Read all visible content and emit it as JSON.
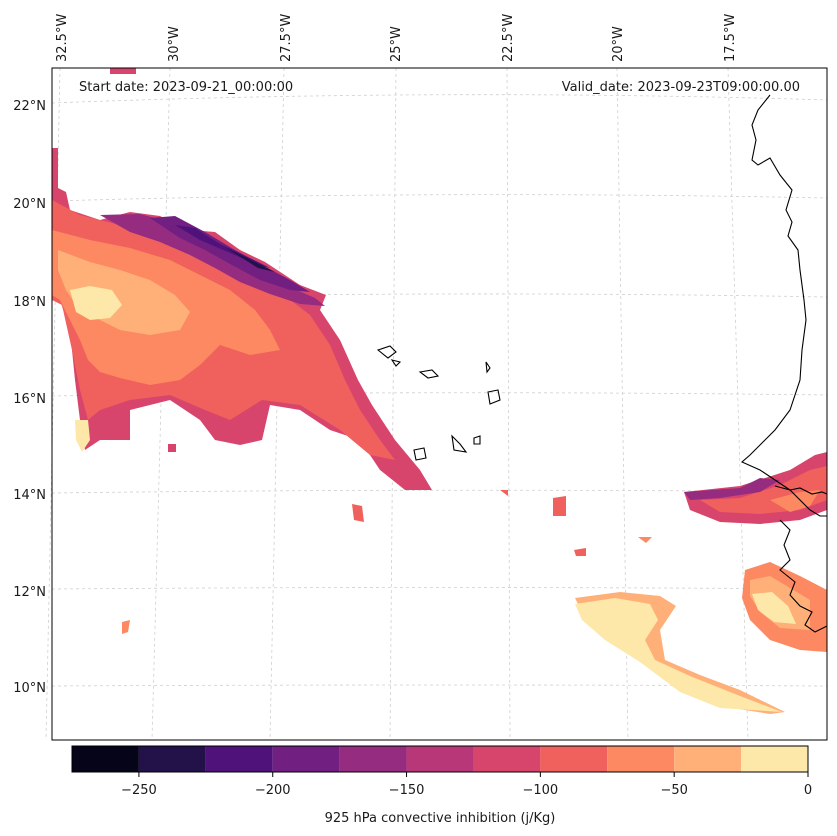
{
  "header": {
    "start_date": "Start date: 2023-09-21_00:00:00",
    "valid_date": "Valid_date: 2023-09-23T09:00:00.00"
  },
  "map": {
    "longitude_labels": [
      "32.5°W",
      "30°W",
      "27.5°W",
      "25°W",
      "22.5°W",
      "20°W",
      "17.5°W"
    ],
    "latitude_labels": [
      "22°N",
      "20°N",
      "18°N",
      "16°N",
      "14°N",
      "12°N",
      "10°N"
    ],
    "gridlines": true,
    "coastline_color": "#000000"
  },
  "colorbar": {
    "label": "925 hPa convective inhibition (j/Kg)",
    "tick_labels": [
      "−250",
      "−200",
      "−150",
      "−100",
      "−50",
      "0"
    ],
    "levels": [
      -275,
      -250,
      -225,
      -200,
      -175,
      -150,
      -125,
      -100,
      -75,
      -50,
      -25,
      0
    ],
    "colors": [
      "#060419",
      "#221249",
      "#4f127b",
      "#711f81",
      "#952c80",
      "#b73779",
      "#d8456c",
      "#f0605d",
      "#fc8961",
      "#feb078",
      "#fde7a9"
    ]
  }
}
